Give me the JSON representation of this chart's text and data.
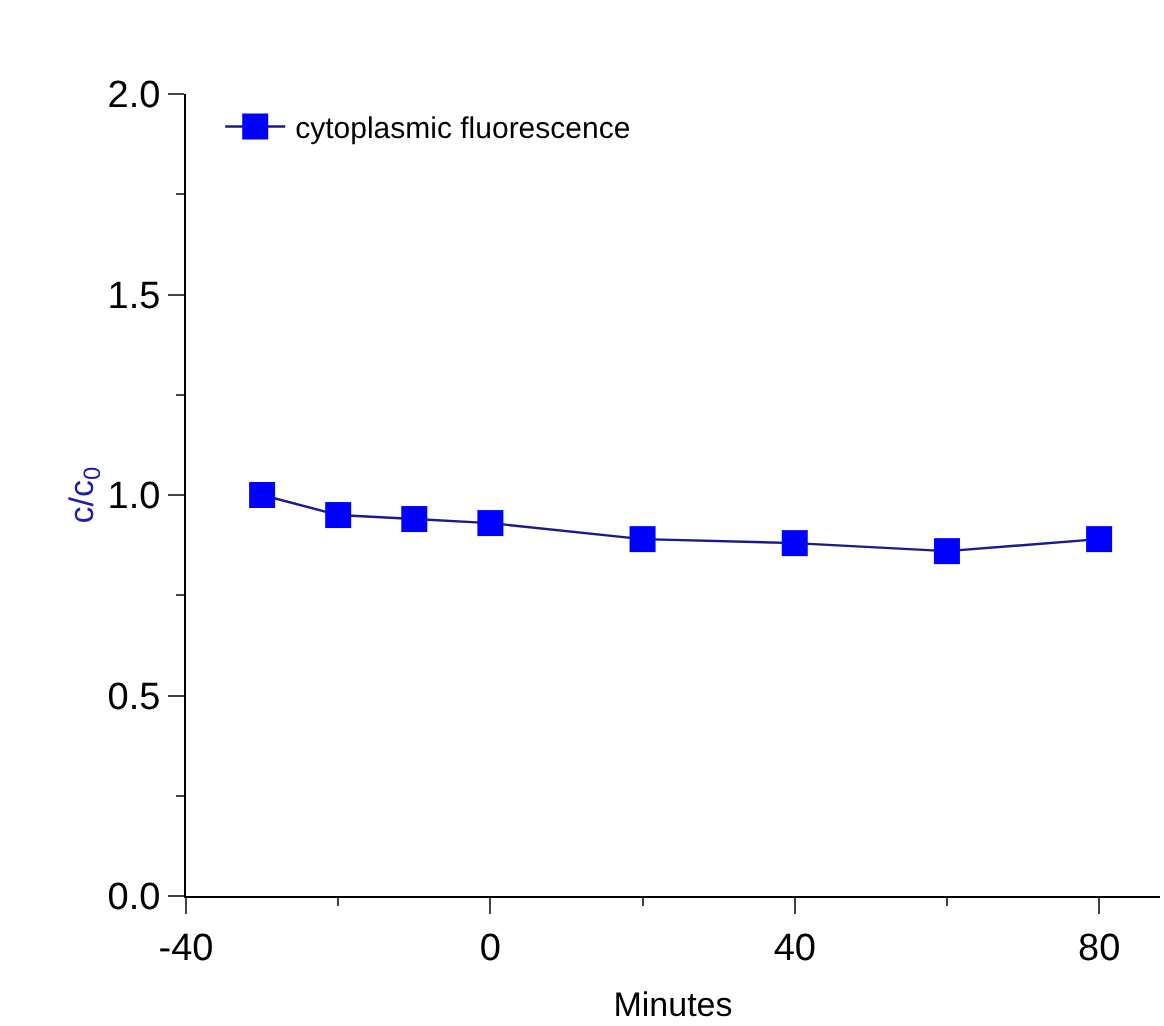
{
  "chart_data": {
    "type": "line",
    "xlabel": "Minutes",
    "ylabel": "c/c$_{0}$",
    "x": [
      -30,
      -20,
      -10,
      0,
      20,
      40,
      60,
      80
    ],
    "series": [
      {
        "name": "cytoplasmic fluorescence",
        "color": "#0000ff",
        "values": [
          1.0,
          0.95,
          0.94,
          0.93,
          0.89,
          0.88,
          0.86,
          0.89
        ]
      }
    ],
    "xlim": [
      -40,
      88
    ],
    "xticks": [
      -40,
      0,
      40,
      80
    ],
    "ylim": [
      0,
      2
    ],
    "yticks": [
      {
        "value": 0,
        "label": "0.0"
      },
      0.5,
      {
        "value": 1,
        "label": "1.0"
      },
      1.5,
      {
        "value": 2,
        "label": "2.0"
      }
    ],
    "legend": "top left",
    "marker": "square",
    "line_style": "solid"
  }
}
